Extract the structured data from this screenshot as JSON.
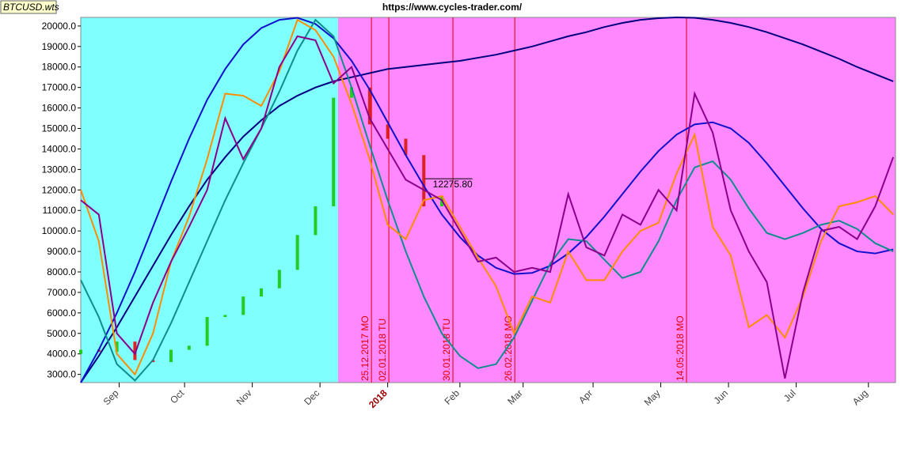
{
  "chart_data": {
    "type": "line",
    "symbol": "BTCUSD.wts",
    "title": "https://www.cycles-trader.com/",
    "xlim": [
      0,
      361
    ],
    "ylim": [
      2600,
      20420
    ],
    "yticks": [
      {
        "value": 3000,
        "label": "3000.0"
      },
      {
        "value": 4000,
        "label": "4000.0"
      },
      {
        "value": 5000,
        "label": "5000.0"
      },
      {
        "value": 6000,
        "label": "6000.0"
      },
      {
        "value": 7000,
        "label": "7000.0"
      },
      {
        "value": 8000,
        "label": "8000.0"
      },
      {
        "value": 9000,
        "label": "9000.0"
      },
      {
        "value": 10000,
        "label": "10000.0"
      },
      {
        "value": 11000,
        "label": "11000.0"
      },
      {
        "value": 12000,
        "label": "12000.0"
      },
      {
        "value": 13000,
        "label": "13000.0"
      },
      {
        "value": 14000,
        "label": "14000.0"
      },
      {
        "value": 15000,
        "label": "15000.0"
      },
      {
        "value": 16000,
        "label": "16000.0"
      },
      {
        "value": 17000,
        "label": "17000.0"
      },
      {
        "value": 18000,
        "label": "18000.0"
      },
      {
        "value": 19000,
        "label": "19000.0"
      },
      {
        "value": 20000,
        "label": "20000.0"
      }
    ],
    "xticks": [
      {
        "value": 17,
        "label": "Sep"
      },
      {
        "value": 46,
        "label": "Oct"
      },
      {
        "value": 76,
        "label": "Nov"
      },
      {
        "value": 106,
        "label": "Dec"
      },
      {
        "value": 136,
        "label": "2018",
        "color": "#990000"
      },
      {
        "value": 168,
        "label": "Feb"
      },
      {
        "value": 196,
        "label": "Mar"
      },
      {
        "value": 227,
        "label": "Apr"
      },
      {
        "value": 257,
        "label": "May"
      },
      {
        "value": 287,
        "label": "Jun"
      },
      {
        "value": 317,
        "label": "Jul"
      },
      {
        "value": 349,
        "label": "Aug"
      }
    ],
    "regions": [
      {
        "x": [
          0,
          114
        ],
        "color": "#80ffff"
      },
      {
        "x": [
          114,
          361
        ],
        "color": "#ff88ff"
      }
    ],
    "x": [
      0,
      8,
      16,
      24,
      32,
      40,
      48,
      56,
      64,
      72,
      80,
      88,
      96,
      104,
      112,
      120,
      128,
      136,
      144,
      152,
      160,
      168,
      176,
      184,
      192,
      200,
      208,
      216,
      224,
      232,
      240,
      248,
      256,
      264,
      272,
      280,
      288,
      296,
      304,
      312,
      320,
      328,
      336,
      344,
      352,
      360
    ],
    "series": [
      {
        "color": "#000080",
        "values": [
          2600,
          3900,
          5300,
          6800,
          8300,
          9800,
          11200,
          12500,
          13600,
          14600,
          15400,
          16100,
          16600,
          17000,
          17300,
          17500,
          17700,
          17900,
          18000,
          18100,
          18200,
          18300,
          18450,
          18600,
          18800,
          19000,
          19250,
          19500,
          19700,
          19950,
          20150,
          20300,
          20380,
          20420,
          20400,
          20300,
          20150,
          19950,
          19700,
          19400,
          19100,
          18750,
          18400,
          18000,
          17650,
          17300
        ]
      },
      {
        "color": "#1010cc",
        "values": [
          2600,
          4200,
          6000,
          8000,
          10200,
          12400,
          14500,
          16400,
          17900,
          19100,
          19900,
          20300,
          20400,
          20100,
          19400,
          18300,
          16900,
          15300,
          13700,
          12200,
          10800,
          9700,
          8800,
          8200,
          7900,
          7950,
          8300,
          8900,
          9700,
          10700,
          11800,
          12900,
          13900,
          14700,
          15200,
          15300,
          15000,
          14300,
          13300,
          12200,
          11100,
          10100,
          9400,
          9000,
          8900,
          9100
        ]
      },
      {
        "color": "#108c8c",
        "values": [
          7600,
          5800,
          3500,
          2700,
          3700,
          5500,
          7500,
          9500,
          11500,
          13300,
          15000,
          16800,
          18800,
          20300,
          19500,
          17000,
          14200,
          11500,
          9000,
          6800,
          5000,
          3900,
          3300,
          3500,
          4800,
          6600,
          8400,
          9600,
          9500,
          8600,
          7700,
          8000,
          9500,
          11500,
          13100,
          13400,
          12500,
          11100,
          9900,
          9600,
          9900,
          10300,
          10500,
          10100,
          9400,
          9000
        ]
      },
      {
        "color": "#ff8c00",
        "values": [
          12000,
          9500,
          4000,
          3000,
          5000,
          8500,
          10700,
          13500,
          16700,
          16600,
          16100,
          17800,
          20300,
          19800,
          18500,
          16200,
          13500,
          10300,
          9600,
          11500,
          11700,
          10200,
          8700,
          7300,
          5000,
          6800,
          6500,
          9000,
          7600,
          7600,
          9000,
          10000,
          10400,
          12800,
          14700,
          10200,
          8800,
          5300,
          5900,
          4800,
          6800,
          9500,
          11200,
          11400,
          11700,
          10800
        ]
      },
      {
        "color": "#8b008b",
        "values": [
          11500,
          10800,
          5000,
          4000,
          6500,
          8500,
          10200,
          12000,
          15500,
          13500,
          15000,
          18000,
          19500,
          19300,
          17200,
          18000,
          15500,
          14000,
          12500,
          12000,
          11500,
          10000,
          8500,
          8700,
          8000,
          8200,
          8000,
          11800,
          9200,
          8800,
          10800,
          10300,
          12000,
          11000,
          16700,
          14800,
          11000,
          9000,
          7500,
          2800,
          7000,
          10000,
          10200,
          9600,
          11200,
          13600
        ]
      }
    ],
    "candles": {
      "x": [
        0,
        8,
        16,
        24,
        32,
        40,
        48,
        56,
        64,
        72,
        80,
        88,
        96,
        104,
        112,
        120,
        128,
        136,
        144,
        152,
        160
      ],
      "open": [
        4000,
        4200,
        4100,
        4600,
        3700,
        3600,
        4200,
        4400,
        5800,
        5900,
        6800,
        7200,
        8100,
        9800,
        11200,
        16500,
        17000,
        15200,
        14500,
        13700,
        11200
      ],
      "close": [
        4200,
        4100,
        4600,
        3700,
        3600,
        4200,
        4400,
        5800,
        5900,
        6800,
        7200,
        8100,
        9800,
        11200,
        16500,
        17000,
        15200,
        14500,
        13700,
        11200,
        11700
      ],
      "up_color": "#22cc22",
      "down_color": "#dd2222"
    },
    "price_label": {
      "x": 156,
      "value": 12275.8,
      "label": "12275.80"
    },
    "markers": [
      {
        "x": 128.8,
        "label": "25.12.2017 MO"
      },
      {
        "x": 136.5,
        "label": "02.01.2018 TU"
      },
      {
        "x": 164.9,
        "label": "30.01.2018 TU"
      },
      {
        "x": 192.3,
        "label": "26.02.2018 MO"
      },
      {
        "x": 268.4,
        "label": "14.05.2018 MO"
      }
    ],
    "marker_color": "#dd0000"
  }
}
